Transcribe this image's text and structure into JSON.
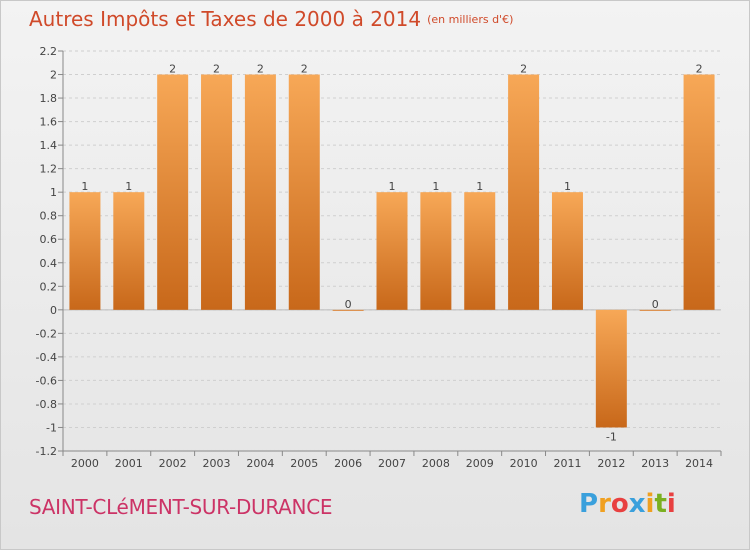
{
  "header": {
    "title": "Autres Impôts et Taxes de 2000 à 2014",
    "unit": "(en milliers d'€)"
  },
  "footer": {
    "commune": "SAINT-CLéMENT-SUR-DURANCE",
    "logo_letters": [
      "P",
      "r",
      "o",
      "x",
      "i",
      "t",
      "i"
    ],
    "logo_colors": [
      "#3aa0dc",
      "#f0a020",
      "#e84040",
      "#3aa0dc",
      "#f0a020",
      "#7ab020",
      "#e84040"
    ]
  },
  "colors": {
    "bar_light": "#f7a857",
    "bar_dark": "#c8681a",
    "grid": "#cfcfcf",
    "axis_text": "#444444"
  },
  "chart_data": {
    "type": "bar",
    "title": "Autres Impôts et Taxes de 2000 à 2014",
    "subtitle": "(en milliers d'€)",
    "categories": [
      "2000",
      "2001",
      "2002",
      "2003",
      "2004",
      "2005",
      "2006",
      "2007",
      "2008",
      "2009",
      "2010",
      "2011",
      "2012",
      "2013",
      "2014"
    ],
    "values": [
      1,
      1,
      2,
      2,
      2,
      2,
      0,
      1,
      1,
      1,
      2,
      1,
      -1,
      0,
      2
    ],
    "value_labels": [
      "1",
      "1",
      "2",
      "2",
      "2",
      "2",
      "0",
      "1",
      "1",
      "1",
      "2",
      "1",
      "-1",
      "0",
      "2"
    ],
    "ylim": [
      -1.2,
      2.2
    ],
    "yticks": [
      -1.2,
      -1,
      -0.8,
      -0.6,
      -0.4,
      -0.2,
      0,
      0.2,
      0.4,
      0.6,
      0.8,
      1,
      1.2,
      1.4,
      1.6,
      1.8,
      2,
      2.2
    ],
    "ytick_labels": [
      "-1.2",
      "-1",
      "-0.8",
      "-0.6",
      "-0.4",
      "-0.2",
      "0",
      "0.2",
      "0.4",
      "0.6",
      "0.8",
      "1",
      "1.2",
      "1.4",
      "1.6",
      "1.8",
      "2",
      "2.2"
    ],
    "grid": true,
    "legend": "none"
  }
}
